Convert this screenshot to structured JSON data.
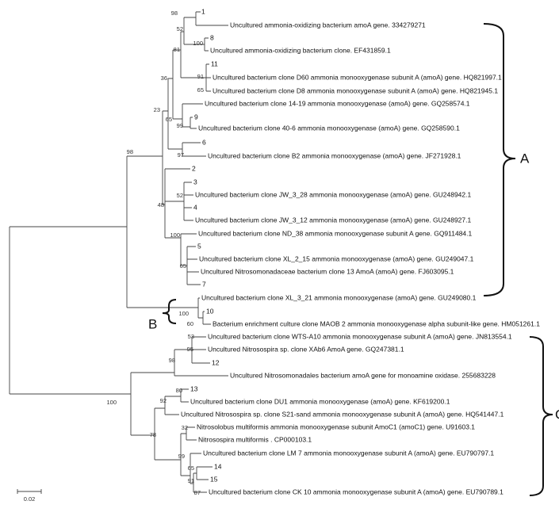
{
  "tree": {
    "leaf_labels": [
      "Uncultured ammonia-oxidizing bacterium amoA gene. 334279271",
      "Uncultured ammonia-oxidizing bacterium clone. EF431859.1",
      "Uncultured bacterium clone D60 ammonia monooxygenase subunit A (amoA) gene. HQ821997.1",
      "Uncultured bacterium clone D8 ammonia monooxygenase subunit A (amoA) gene. HQ821945.1",
      "Uncultured bacterium clone 14-19 ammonia monooxygenase (amoA) gene. GQ258574.1",
      "Uncultured bacterium clone 40-6 ammonia monooxygenase (amoA) gene. GQ258590.1",
      "Uncultured bacterium clone B2 ammonia monooxygenase (amoA) gene. JF271928.1",
      "Uncultured bacterium clone JW_3_28 ammonia monooxygenase (amoA) gene. GU248942.1",
      "Uncultured bacterium clone JW_3_12 ammonia monooxygenase (amoA) gene. GU248927.1",
      "Uncultured bacterium clone ND_38 ammonia monooxygenase subunit A gene. GQ911484.1",
      "Uncultured bacterium clone XL_2_15 ammonia monooxygenase (amoA) gene. GU249047.1",
      "Uncultured Nitrosomonadaceae bacterium clone 13 AmoA (amoA) gene. FJ603095.1",
      "Uncultured bacterium clone XL_3_21 ammonia monooxygenase (amoA) gene. GU249080.1",
      "Bacterium enrichment culture clone MAOB 2 ammonia monooxygenase alpha subunit-like gene. HM051261.1",
      "Uncultured bacterium clone WTS-A10 ammonia monooxygenase subunit A (amoA) gene. JN813554.1",
      "Uncultured Nitrosospira sp. clone XAb6 AmoA gene. GQ247381.1",
      "Uncultured Nitrosomonadales bacterium amoA gene for monoamine oxidase. 255683228",
      "Uncultured bacterium clone DU1 ammonia monooxygenase (amoA) gene. KF619200.1",
      "Uncultured Nitrosospira sp. clone S21-sand ammonia monooxygenase subunit A (amoA) gene. HQ541447.1",
      "Nitrosolobus multiformis ammonia monooxygenase subunit AmoC1 (amoC1) gene. U91603.1",
      "Nitrosospira multiformis . CP000103.1",
      "Uncultured bacterium clone LM 7 ammonia monooxygenase subunit A (amoA) gene. EU790797.1",
      "Uncultured bacterium clone CK 10 ammonia monooxygenase subunit A (amoA) gene. EU790789.1"
    ],
    "tip_numbers": [
      1,
      8,
      11,
      9,
      6,
      2,
      3,
      4,
      5,
      7,
      10,
      12,
      13,
      14,
      15
    ],
    "bootstrap": [
      98,
      52,
      100,
      81,
      36,
      91,
      65,
      23,
      65,
      99,
      97,
      98,
      48,
      52,
      100,
      65,
      100,
      60,
      53,
      95,
      98,
      100,
      80,
      92,
      32,
      78,
      99,
      65,
      91,
      87
    ],
    "clades": [
      "A",
      "B",
      "C"
    ],
    "scale_bar": "0.02"
  }
}
